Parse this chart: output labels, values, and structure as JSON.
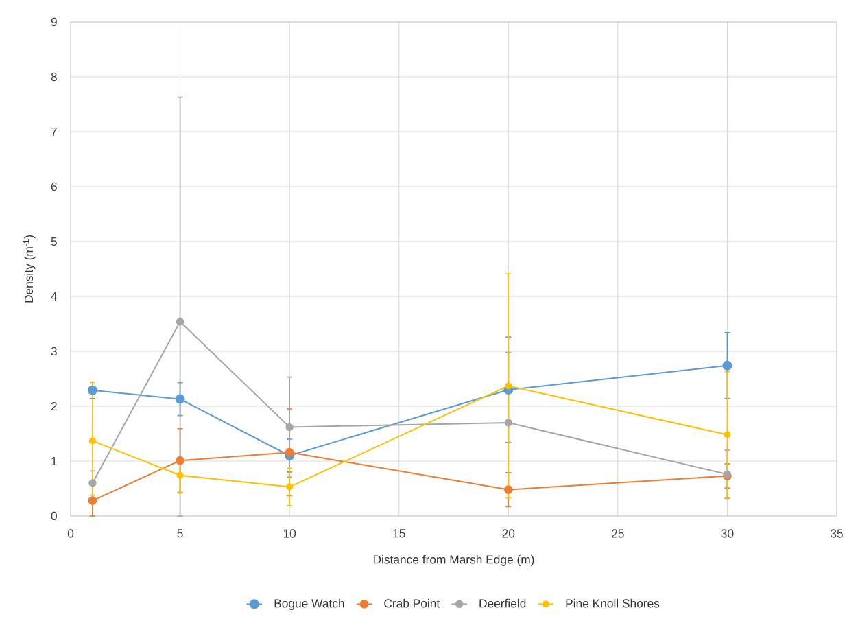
{
  "chart_data": {
    "type": "line",
    "xlabel": "Distance from Marsh Edge (m)",
    "ylabel": "Density (m$^{-1}$)",
    "x": [
      1,
      5,
      10,
      20,
      30
    ],
    "series": [
      {
        "name": "Bogue Watch",
        "color": "#5b9bd5",
        "values": [
          2.29,
          2.13,
          1.1,
          2.3,
          2.74
        ],
        "errors": [
          0.15,
          0.3,
          0.3,
          0.96,
          0.6
        ]
      },
      {
        "name": "Crab Point",
        "color": "#ed7d31",
        "values": [
          0.28,
          1.01,
          1.16,
          0.48,
          0.73
        ],
        "errors": [
          0.28,
          0.58,
          0.79,
          0.31,
          0.22
        ]
      },
      {
        "name": "Deerfield",
        "color": "#a5a5a5",
        "values": [
          0.6,
          3.54,
          1.62,
          1.7,
          0.76
        ],
        "errors": [
          0.22,
          [
            0,
            7.63
          ],
          0.91,
          1.28,
          0.44
        ]
      },
      {
        "name": "Pine Knoll Shores",
        "color": "#ffc000",
        "values": [
          1.37,
          0.74,
          0.53,
          2.37,
          1.48
        ],
        "errors": [
          1.06,
          0.32,
          0.34,
          2.04,
          1.15
        ]
      }
    ],
    "xlim": [
      0,
      35
    ],
    "xticks": [
      0,
      5,
      10,
      15,
      20,
      25,
      30,
      35
    ],
    "ylim": [
      0,
      9
    ],
    "yticks": [
      0,
      1,
      2,
      3,
      4,
      5,
      6,
      7,
      8,
      9
    ],
    "grid": true,
    "legend": "bottom",
    "marker": "circle",
    "line_style": "solid"
  }
}
